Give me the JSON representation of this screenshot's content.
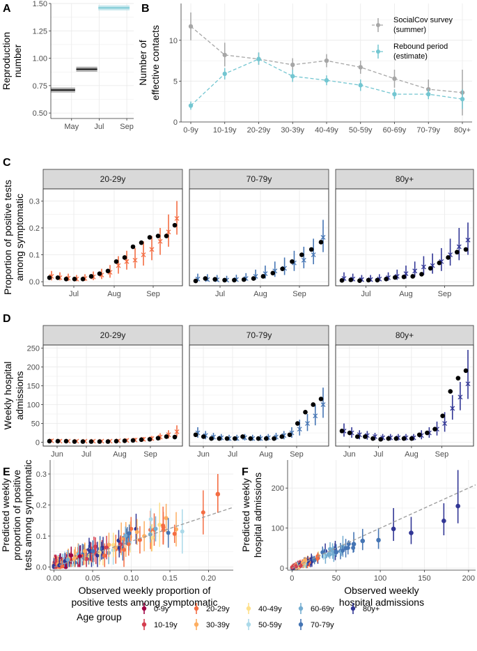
{
  "panel_letters": [
    "A",
    "B",
    "C",
    "D",
    "E",
    "F"
  ],
  "age_groups": [
    "0-9y",
    "10-19y",
    "20-29y",
    "30-39y",
    "40-49y",
    "50-59y",
    "60-69y",
    "70-79y",
    "80y+"
  ],
  "age_colors": [
    "#9e0142",
    "#d53e4f",
    "#f46d43",
    "#fdae61",
    "#fee08b",
    "#abd9e9",
    "#74add1",
    "#4575b4",
    "#313695"
  ],
  "chart_data": [
    {
      "id": "A",
      "type": "line",
      "ylabel": "Reproduction number",
      "ylim": [
        0.45,
        1.5
      ],
      "yticks": [
        0.5,
        0.75,
        1.0,
        1.25,
        1.5
      ],
      "ytick_labels": [
        "0.50",
        "0.75",
        "1.00",
        "1.25",
        "1.50"
      ],
      "xlim": [
        0,
        3
      ],
      "xtick_labels": [
        "May",
        "Jul",
        "Sep"
      ],
      "segments": [
        {
          "x0": 0.0,
          "x1": 0.88,
          "value": 0.71,
          "lo": 0.7,
          "hi": 0.72,
          "color": "#000000",
          "band": "#999999"
        },
        {
          "x0": 0.92,
          "x1": 1.68,
          "value": 0.9,
          "lo": 0.89,
          "hi": 0.91,
          "color": "#000000",
          "band": "#999999"
        },
        {
          "x0": 1.72,
          "x1": 2.85,
          "value": 1.46,
          "lo": 1.45,
          "hi": 1.47,
          "color": "#73c6d1",
          "band": "#b6e1e8"
        }
      ]
    },
    {
      "id": "B",
      "type": "line",
      "ylabel_lines": [
        "Number of",
        "effective contacts"
      ],
      "categories": [
        "0-9y",
        "10-19y",
        "20-29y",
        "30-39y",
        "40-49y",
        "50-59y",
        "60-69y",
        "70-79y",
        "80y+"
      ],
      "ylim": [
        0,
        14.5
      ],
      "yticks": [
        0,
        5,
        10
      ],
      "ytick_labels": [
        "0",
        "5",
        "10"
      ],
      "series": [
        {
          "name": "SocialCov survey (summer)",
          "color": "#a6a6a6",
          "values": [
            11.7,
            8.2,
            7.7,
            7.0,
            7.5,
            6.7,
            5.3,
            4.0,
            3.6
          ],
          "lo": [
            10.0,
            6.8,
            7.0,
            6.2,
            6.7,
            5.9,
            4.2,
            2.8,
            0.8
          ],
          "hi": [
            13.4,
            9.7,
            8.5,
            7.8,
            8.3,
            7.5,
            6.4,
            5.2,
            6.4
          ]
        },
        {
          "name": "Rebound period (estimate)",
          "color": "#73c6d1",
          "values": [
            2.0,
            5.9,
            7.7,
            5.6,
            5.1,
            4.5,
            3.4,
            3.4,
            2.8
          ],
          "lo": [
            1.5,
            5.2,
            7.0,
            4.9,
            4.5,
            3.8,
            2.8,
            2.8,
            1.6
          ],
          "hi": [
            2.5,
            6.6,
            8.5,
            6.4,
            5.7,
            5.2,
            4.0,
            4.0,
            4.0
          ]
        }
      ],
      "legend_lines": [
        [
          "SocialCov survey",
          "(summer)"
        ],
        [
          "Rebound period",
          "(estimate)"
        ]
      ]
    },
    {
      "id": "C",
      "type": "scatter",
      "ylabel_lines": [
        "Proportion of positive tests",
        "among symptomatic"
      ],
      "ylim": [
        -0.015,
        0.345
      ],
      "yticks": [
        0.0,
        0.1,
        0.2,
        0.3
      ],
      "ytick_labels": [
        "0.0",
        "0.1",
        "0.2",
        "0.3"
      ],
      "xtick_labels": [
        "Jul",
        "Aug",
        "Sep"
      ],
      "xtick_pos": [
        0.22,
        0.51,
        0.79
      ],
      "facets": [
        {
          "label": "20-29y",
          "color": "#f46d43",
          "obs": [
            0.015,
            0.015,
            0.01,
            0.01,
            0.01,
            0.02,
            0.03,
            0.04,
            0.075,
            0.09,
            0.13,
            0.145,
            0.165,
            0.17,
            0.17,
            0.21
          ],
          "pred": [
            0.02,
            0.015,
            0.013,
            0.01,
            0.012,
            0.018,
            0.025,
            0.035,
            0.06,
            0.075,
            0.08,
            0.1,
            0.12,
            0.15,
            0.185,
            0.235
          ],
          "lo": [
            0.005,
            0.005,
            0.003,
            0.002,
            0.003,
            0.006,
            0.01,
            0.015,
            0.03,
            0.045,
            0.05,
            0.06,
            0.08,
            0.1,
            0.13,
            0.175
          ],
          "hi": [
            0.04,
            0.035,
            0.03,
            0.025,
            0.028,
            0.038,
            0.048,
            0.062,
            0.095,
            0.115,
            0.125,
            0.15,
            0.17,
            0.2,
            0.25,
            0.3
          ]
        },
        {
          "label": "70-79y",
          "color": "#4575b4",
          "obs": [
            0.003,
            0.012,
            0.009,
            0.006,
            0.006,
            0.008,
            0.012,
            0.02,
            0.032,
            0.048,
            0.075,
            0.1,
            0.12,
            0.147
          ],
          "pred": [
            0.01,
            0.008,
            0.007,
            0.006,
            0.008,
            0.012,
            0.02,
            0.03,
            0.04,
            0.05,
            0.07,
            0.08,
            0.1,
            0.165
          ],
          "lo": [
            0.002,
            0.002,
            0.001,
            0.001,
            0.002,
            0.004,
            0.007,
            0.012,
            0.018,
            0.025,
            0.04,
            0.05,
            0.065,
            0.11
          ],
          "hi": [
            0.03,
            0.028,
            0.025,
            0.022,
            0.026,
            0.032,
            0.045,
            0.06,
            0.075,
            0.09,
            0.115,
            0.13,
            0.16,
            0.23
          ]
        },
        {
          "label": "80y+",
          "color": "#313695",
          "obs": [
            0.005,
            0.007,
            0.004,
            0.006,
            0.006,
            0.01,
            0.016,
            0.018,
            0.02,
            0.028,
            0.05,
            0.07,
            0.09,
            0.11,
            0.12
          ],
          "pred": [
            0.012,
            0.01,
            0.008,
            0.008,
            0.01,
            0.015,
            0.02,
            0.03,
            0.04,
            0.055,
            0.06,
            0.075,
            0.1,
            0.13,
            0.155
          ],
          "lo": [
            0.002,
            0.002,
            0.001,
            0.001,
            0.002,
            0.004,
            0.007,
            0.012,
            0.018,
            0.025,
            0.03,
            0.04,
            0.06,
            0.08,
            0.1
          ],
          "hi": [
            0.035,
            0.03,
            0.025,
            0.025,
            0.028,
            0.035,
            0.045,
            0.06,
            0.075,
            0.095,
            0.105,
            0.125,
            0.16,
            0.2,
            0.22
          ]
        }
      ]
    },
    {
      "id": "D",
      "type": "scatter",
      "ylabel_lines": [
        "Weekly hospital",
        "admissions"
      ],
      "ylim": [
        -10,
        258
      ],
      "yticks": [
        0,
        50,
        100,
        150,
        200,
        250
      ],
      "ytick_labels": [
        "0",
        "50",
        "100",
        "150",
        "200",
        "250"
      ],
      "xtick_labels": [
        "Jun",
        "Jul",
        "Aug",
        "Sep"
      ],
      "xtick_pos": [
        0.1,
        0.31,
        0.55,
        0.77
      ],
      "facets": [
        {
          "label": "20-29y",
          "color": "#f46d43",
          "obs": [
            3,
            3,
            3,
            2,
            2,
            2,
            2,
            2,
            3,
            4,
            5,
            7,
            8,
            11,
            15,
            14
          ],
          "pred": [
            4,
            3,
            3,
            3,
            3,
            3,
            3,
            3,
            4,
            5,
            6,
            8,
            10,
            14,
            20,
            28
          ],
          "lo": [
            1,
            1,
            1,
            1,
            1,
            1,
            1,
            1,
            1,
            2,
            2,
            3,
            4,
            6,
            10,
            15
          ],
          "hi": [
            9,
            8,
            7,
            7,
            7,
            7,
            7,
            7,
            8,
            10,
            12,
            14,
            17,
            24,
            32,
            45
          ]
        },
        {
          "label": "70-79y",
          "color": "#4575b4",
          "obs": [
            20,
            15,
            10,
            10,
            10,
            10,
            15,
            10,
            10,
            10,
            10,
            15,
            20,
            50,
            80,
            100,
            115
          ],
          "pred": [
            25,
            18,
            14,
            12,
            10,
            10,
            12,
            10,
            10,
            12,
            14,
            18,
            25,
            35,
            50,
            70,
            100
          ],
          "lo": [
            12,
            8,
            6,
            5,
            4,
            4,
            5,
            4,
            4,
            5,
            6,
            8,
            12,
            18,
            30,
            45,
            65
          ],
          "hi": [
            40,
            30,
            25,
            22,
            20,
            20,
            22,
            20,
            20,
            22,
            25,
            30,
            40,
            60,
            75,
            100,
            145
          ]
        },
        {
          "label": "80y+",
          "color": "#313695",
          "obs": [
            30,
            25,
            15,
            15,
            10,
            8,
            10,
            10,
            10,
            10,
            20,
            25,
            35,
            70,
            135,
            170,
            190
          ],
          "pred": [
            30,
            25,
            20,
            18,
            15,
            12,
            12,
            12,
            12,
            12,
            18,
            25,
            35,
            50,
            90,
            120,
            155
          ],
          "lo": [
            15,
            12,
            8,
            7,
            6,
            5,
            5,
            5,
            5,
            5,
            8,
            12,
            18,
            28,
            60,
            85,
            115
          ],
          "hi": [
            50,
            40,
            32,
            30,
            25,
            22,
            22,
            22,
            22,
            22,
            32,
            40,
            55,
            80,
            125,
            160,
            245
          ]
        }
      ]
    },
    {
      "id": "E",
      "type": "scatter",
      "xlabel_lines": [
        "Observed weekly proportion of",
        "positive tests among symptomatic"
      ],
      "ylabel_lines": [
        "Predicted weekly",
        "proportion of positive",
        "tests among symptomatic"
      ],
      "xlim": [
        -0.005,
        0.232
      ],
      "ylim": [
        -0.01,
        0.345
      ],
      "xticks": [
        0,
        0.05,
        0.1,
        0.15,
        0.2
      ],
      "xtick_labels": [
        "0.00",
        "0.05",
        "0.10",
        "0.15",
        "0.20"
      ],
      "yticks": [
        0.0,
        0.1,
        0.2,
        0.3
      ],
      "ytick_labels": [
        "0.0",
        "0.1",
        "0.2",
        "0.3"
      ],
      "identity_line": true
    },
    {
      "id": "F",
      "type": "scatter",
      "xlabel_lines": [
        "Observed weekly",
        "hospital admissions"
      ],
      "ylabel_lines": [
        "Predicted weekly",
        "hospital admissions"
      ],
      "xlim": [
        -5,
        208
      ],
      "ylim": [
        -5,
        270
      ],
      "xticks": [
        0,
        50,
        100,
        150,
        200
      ],
      "xtick_labels": [
        "0",
        "50",
        "100",
        "150",
        "200"
      ],
      "yticks": [
        0,
        100,
        200
      ],
      "ytick_labels": [
        "0",
        "100",
        "200"
      ],
      "identity_line": true,
      "highlight_points": [
        {
          "x": 172,
          "y": 118,
          "lo": 82,
          "hi": 162
        },
        {
          "x": 188,
          "y": 155,
          "lo": 112,
          "hi": 245
        },
        {
          "x": 135,
          "y": 88,
          "lo": 60,
          "hi": 128
        },
        {
          "x": 115,
          "y": 98,
          "lo": 68,
          "hi": 150
        },
        {
          "x": 98,
          "y": 70,
          "lo": 48,
          "hi": 100
        },
        {
          "x": 80,
          "y": 68,
          "lo": 45,
          "hi": 98
        },
        {
          "x": 70,
          "y": 60,
          "lo": 40,
          "hi": 90
        },
        {
          "x": 50,
          "y": 40,
          "lo": 28,
          "hi": 60
        }
      ]
    }
  ],
  "legend": {
    "title": "Age group"
  }
}
